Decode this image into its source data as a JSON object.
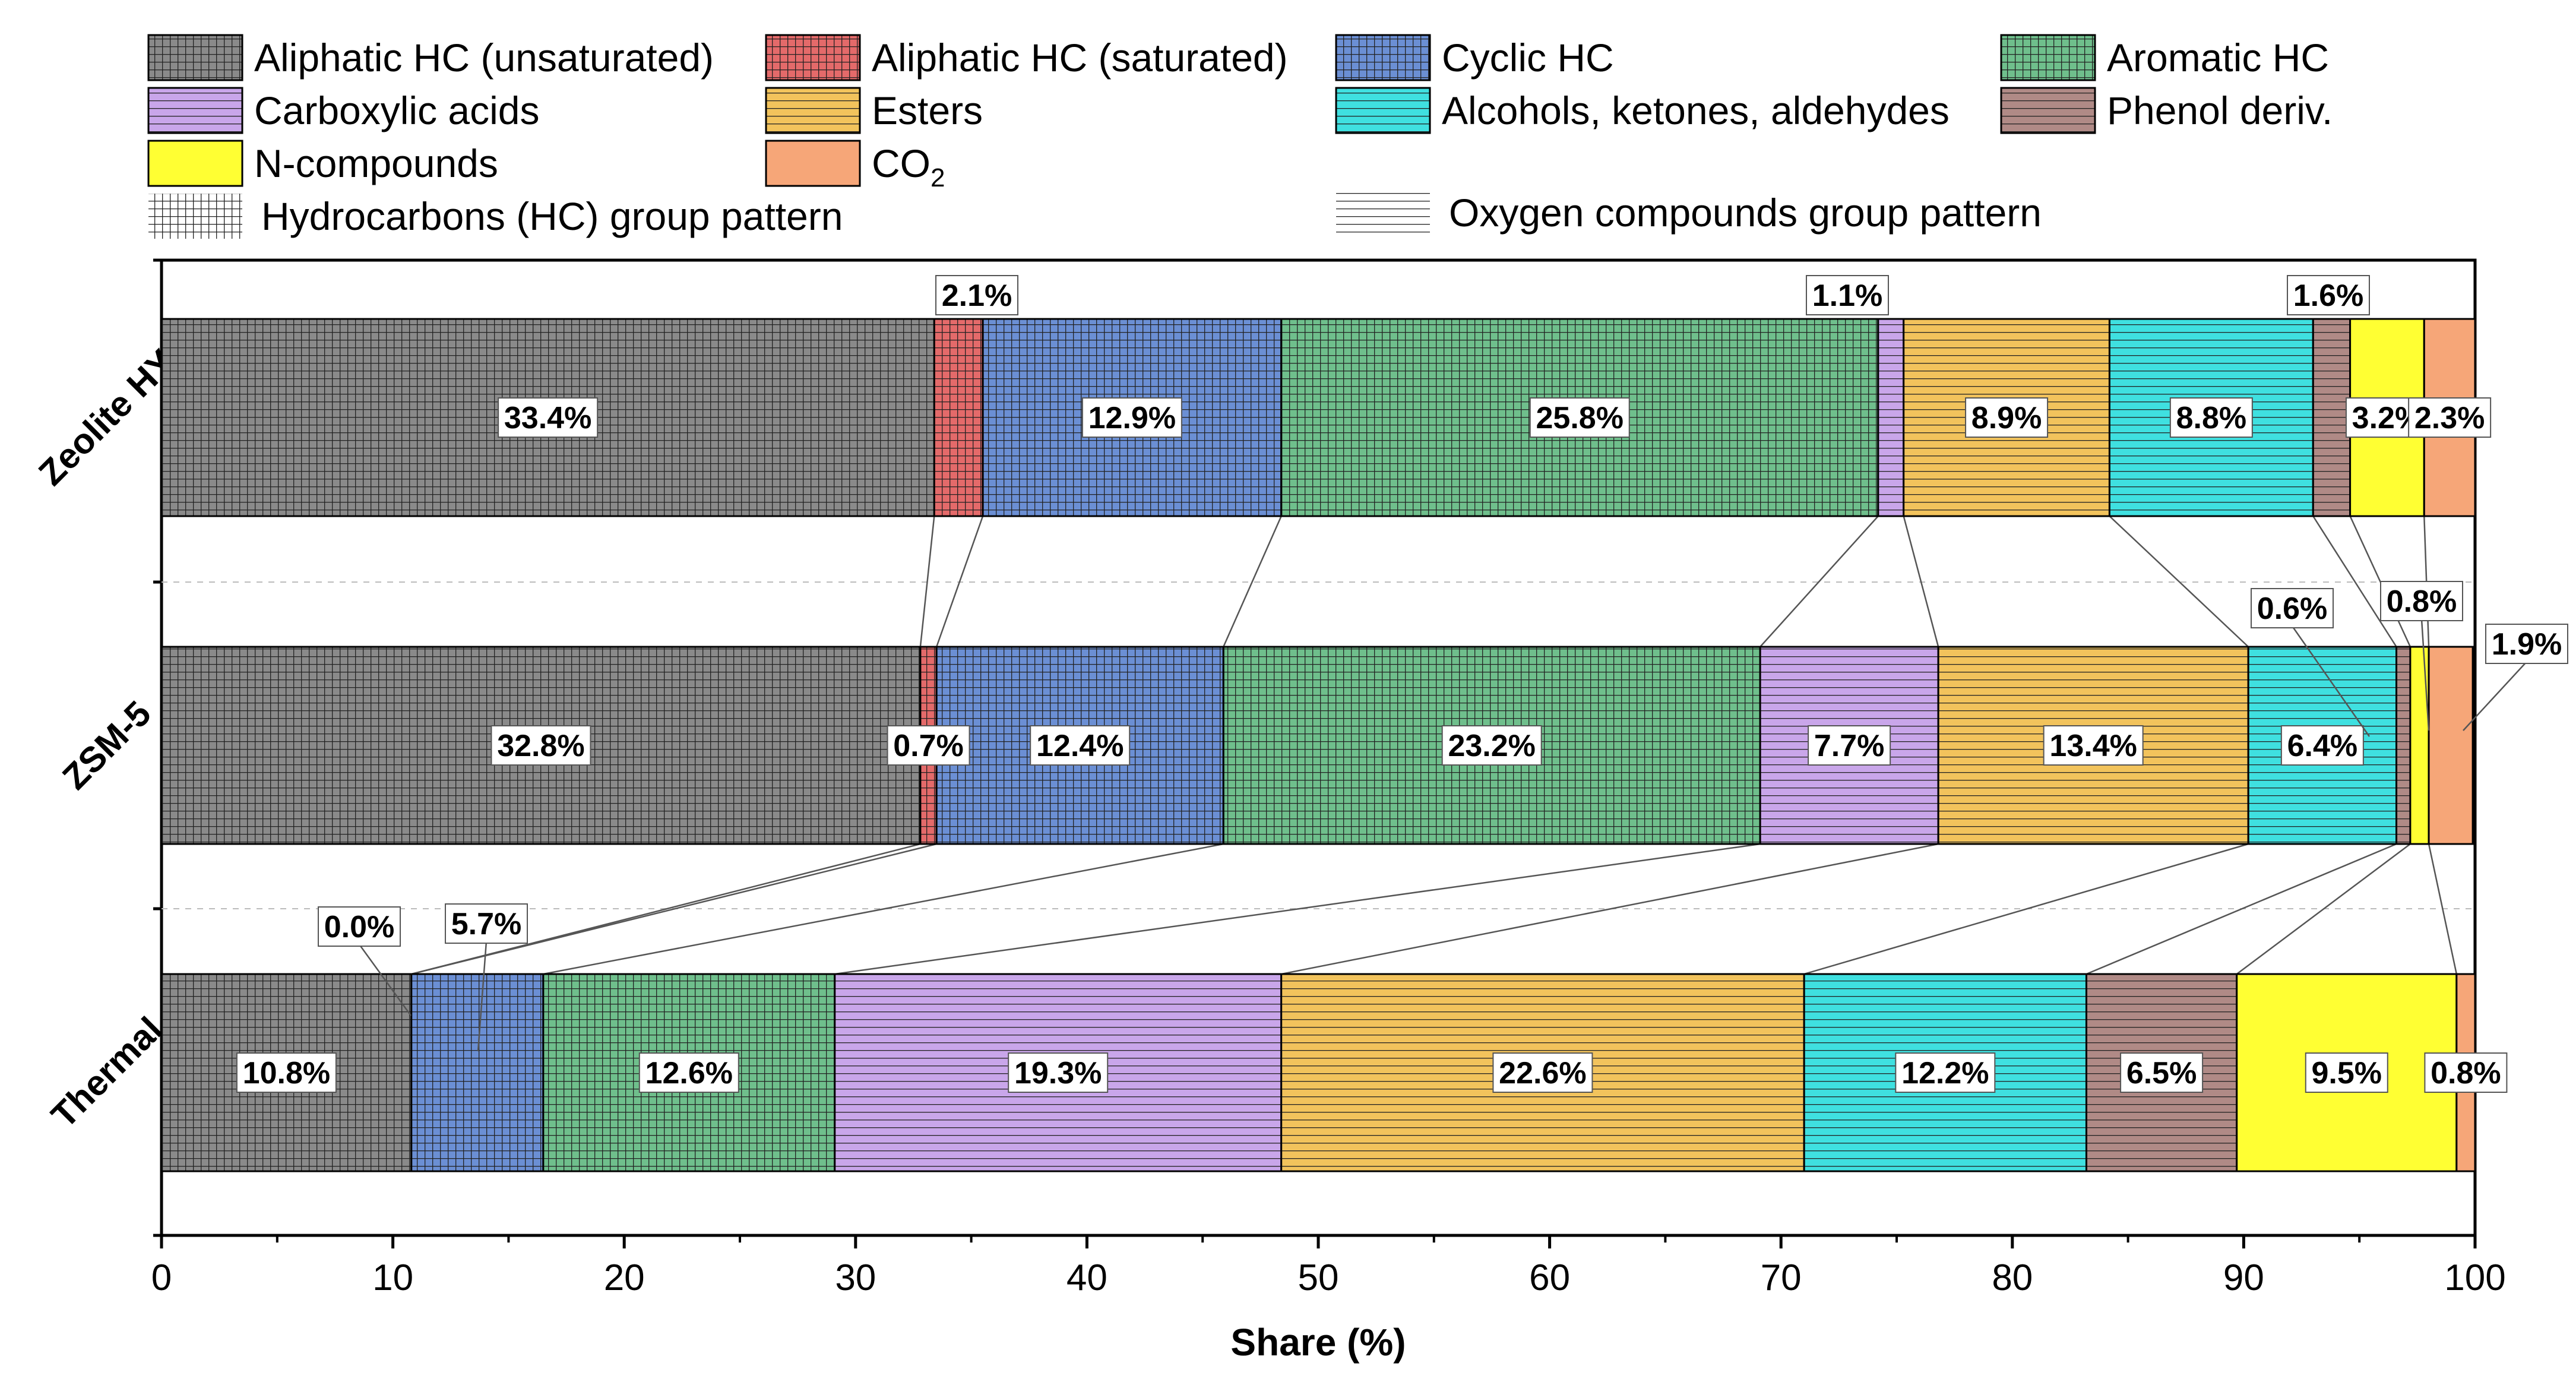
{
  "chart_data": {
    "type": "bar",
    "orientation": "horizontal",
    "stacked": true,
    "xlabel": "Share (%)",
    "ylabel": "",
    "xlim": [
      0,
      100
    ],
    "xticks": [
      0,
      10,
      20,
      30,
      40,
      50,
      60,
      70,
      80,
      90,
      100
    ],
    "categories": [
      "Zeolite HY",
      "ZSM-5",
      "Thermal"
    ],
    "series": [
      {
        "name": "Aliphatic HC (unsaturated)",
        "color": "#8a8a8a",
        "pattern": "grid",
        "values": [
          33.4,
          32.8,
          10.8
        ],
        "labels": [
          "33.4%",
          "32.8%",
          "10.8%"
        ]
      },
      {
        "name": "Aliphatic HC (saturated)",
        "color": "#e46a6a",
        "pattern": "grid",
        "values": [
          2.1,
          0.7,
          0.0
        ],
        "labels": [
          "2.1%",
          "0.7%",
          "0.0%"
        ]
      },
      {
        "name": "Cyclic HC",
        "color": "#6b8fd4",
        "pattern": "grid",
        "values": [
          12.9,
          12.4,
          5.7
        ],
        "labels": [
          "12.9%",
          "12.4%",
          "5.7%"
        ]
      },
      {
        "name": "Aromatic HC",
        "color": "#6fbf8c",
        "pattern": "grid",
        "values": [
          25.8,
          23.2,
          12.6
        ],
        "labels": [
          "25.8%",
          "23.2%",
          "12.6%"
        ]
      },
      {
        "name": "Carboxylic acids",
        "color": "#c9a6ea",
        "pattern": "lines",
        "values": [
          1.1,
          7.7,
          19.3
        ],
        "labels": [
          "1.1%",
          "7.7%",
          "19.3%"
        ]
      },
      {
        "name": "Esters",
        "color": "#f2c35c",
        "pattern": "lines",
        "values": [
          8.9,
          13.4,
          22.6
        ],
        "labels": [
          "8.9%",
          "13.4%",
          "22.6%"
        ]
      },
      {
        "name": "Alcohols, ketones, aldehydes",
        "color": "#3fe0e0",
        "pattern": "lines",
        "values": [
          8.8,
          6.4,
          12.2
        ],
        "labels": [
          "8.8%",
          "6.4%",
          "12.2%"
        ]
      },
      {
        "name": "Phenol deriv.",
        "color": "#b08a86",
        "pattern": "lines",
        "values": [
          1.6,
          0.6,
          6.5
        ],
        "labels": [
          "1.6%",
          "0.6%",
          "6.5%"
        ]
      },
      {
        "name": "N-compounds",
        "color": "#ffff33",
        "pattern": "none",
        "values": [
          3.2,
          0.8,
          9.5
        ],
        "labels": [
          "3.2%",
          "0.8%",
          "9.5%"
        ]
      },
      {
        "name": "CO",
        "name_sub": "2",
        "color": "#f6a678",
        "pattern": "none",
        "values": [
          2.3,
          1.9,
          0.8
        ],
        "labels": [
          "2.3%",
          "1.9%",
          "0.8%"
        ]
      }
    ],
    "pattern_legend": [
      {
        "name": "Hydrocarbons (HC) group pattern",
        "pattern": "grid"
      },
      {
        "name": "Oxygen compounds group pattern",
        "pattern": "lines"
      }
    ]
  }
}
